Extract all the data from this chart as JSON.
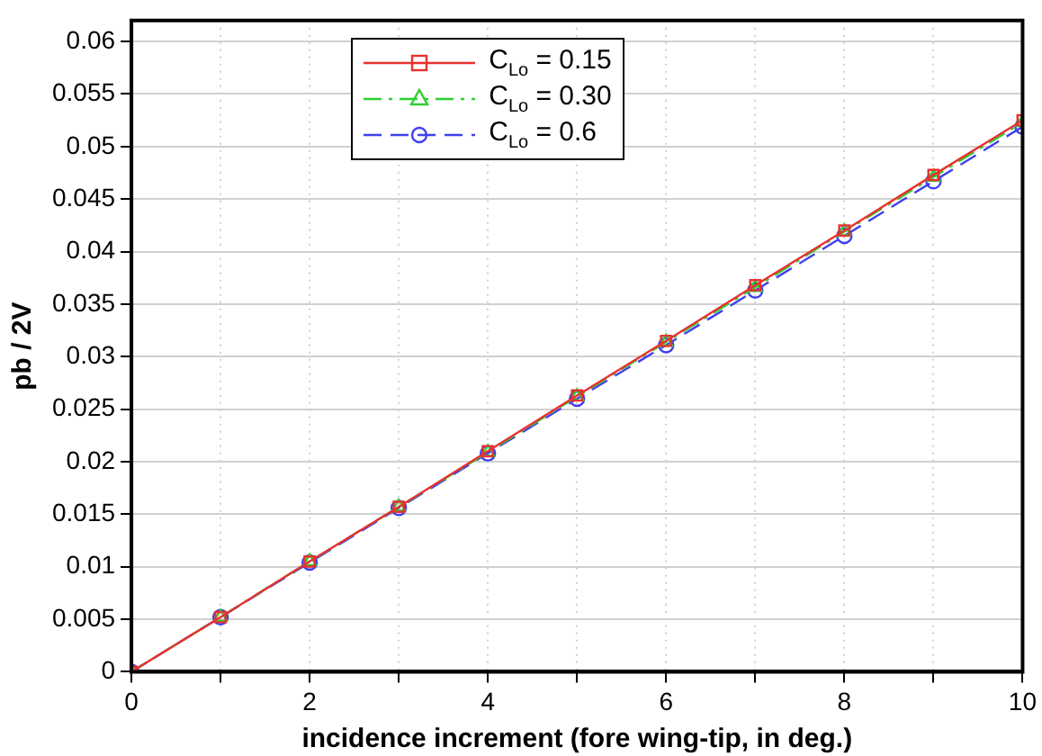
{
  "chart_data": {
    "type": "line",
    "xlabel": "incidence increment (fore wing-tip, in deg.)",
    "ylabel": "pb / 2V",
    "x": [
      0,
      1,
      2,
      3,
      4,
      5,
      6,
      7,
      8,
      9,
      10
    ],
    "series": [
      {
        "name": "C$_{Lo}$ = 0.15",
        "color": "#e8312f",
        "marker": "square",
        "line_style": "solid",
        "values": [
          0,
          0.0052,
          0.0105,
          0.0157,
          0.021,
          0.0263,
          0.0315,
          0.0368,
          0.042,
          0.0473,
          0.0525
        ]
      },
      {
        "name": "C$_{Lo}$ = 0.30",
        "color": "#2fcf2f",
        "marker": "triangle",
        "line_style": "dashdot",
        "values": [
          0,
          0.0052,
          0.0105,
          0.0157,
          0.0209,
          0.0262,
          0.0314,
          0.0366,
          0.0419,
          0.0471,
          0.0523
        ]
      },
      {
        "name": "C$_{Lo}$ = 0.6",
        "color": "#3f3fef",
        "marker": "circle",
        "line_style": "dashed",
        "values": [
          0,
          0.0052,
          0.0104,
          0.0156,
          0.0208,
          0.026,
          0.0311,
          0.0363,
          0.0415,
          0.0467,
          0.0519
        ]
      }
    ],
    "xlim": [
      0,
      10
    ],
    "xticks": [
      0,
      {
        "value": 1,
        "label": null
      },
      2,
      {
        "value": 3,
        "label": null
      },
      4,
      {
        "value": 5,
        "label": null
      },
      6,
      {
        "value": 7,
        "label": null
      },
      8,
      {
        "value": 9,
        "label": null
      },
      10
    ],
    "ylim": [
      0,
      0.062
    ],
    "yticks": [
      0,
      0.005,
      0.01,
      0.015,
      0.02,
      0.025,
      0.03,
      0.035,
      0.04,
      0.045,
      0.05,
      0.055,
      0.06
    ],
    "grid": true,
    "legend": "top"
  }
}
